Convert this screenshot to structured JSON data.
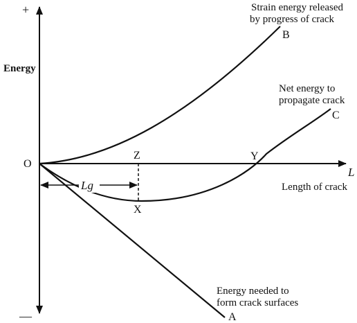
{
  "axis": {
    "y_label": "Energy",
    "x_label": "Length of crack",
    "x_symbol": "L",
    "origin": "O",
    "plus_sign": "+",
    "minus_sign": "—"
  },
  "curves": {
    "strain_energy": {
      "label_line1": "Strain energy released",
      "label_line2": "by progress of crack",
      "end_point": "B"
    },
    "net_energy": {
      "label_line1": "Net energy to",
      "label_line2": "propagate crack",
      "end_point": "C"
    },
    "surface_energy": {
      "label_line1": "Energy needed to",
      "label_line2": "form crack surfaces",
      "end_point": "A"
    }
  },
  "points": {
    "z": "Z",
    "y": "Y",
    "x": "X"
  },
  "griffith_length": "Lg"
}
